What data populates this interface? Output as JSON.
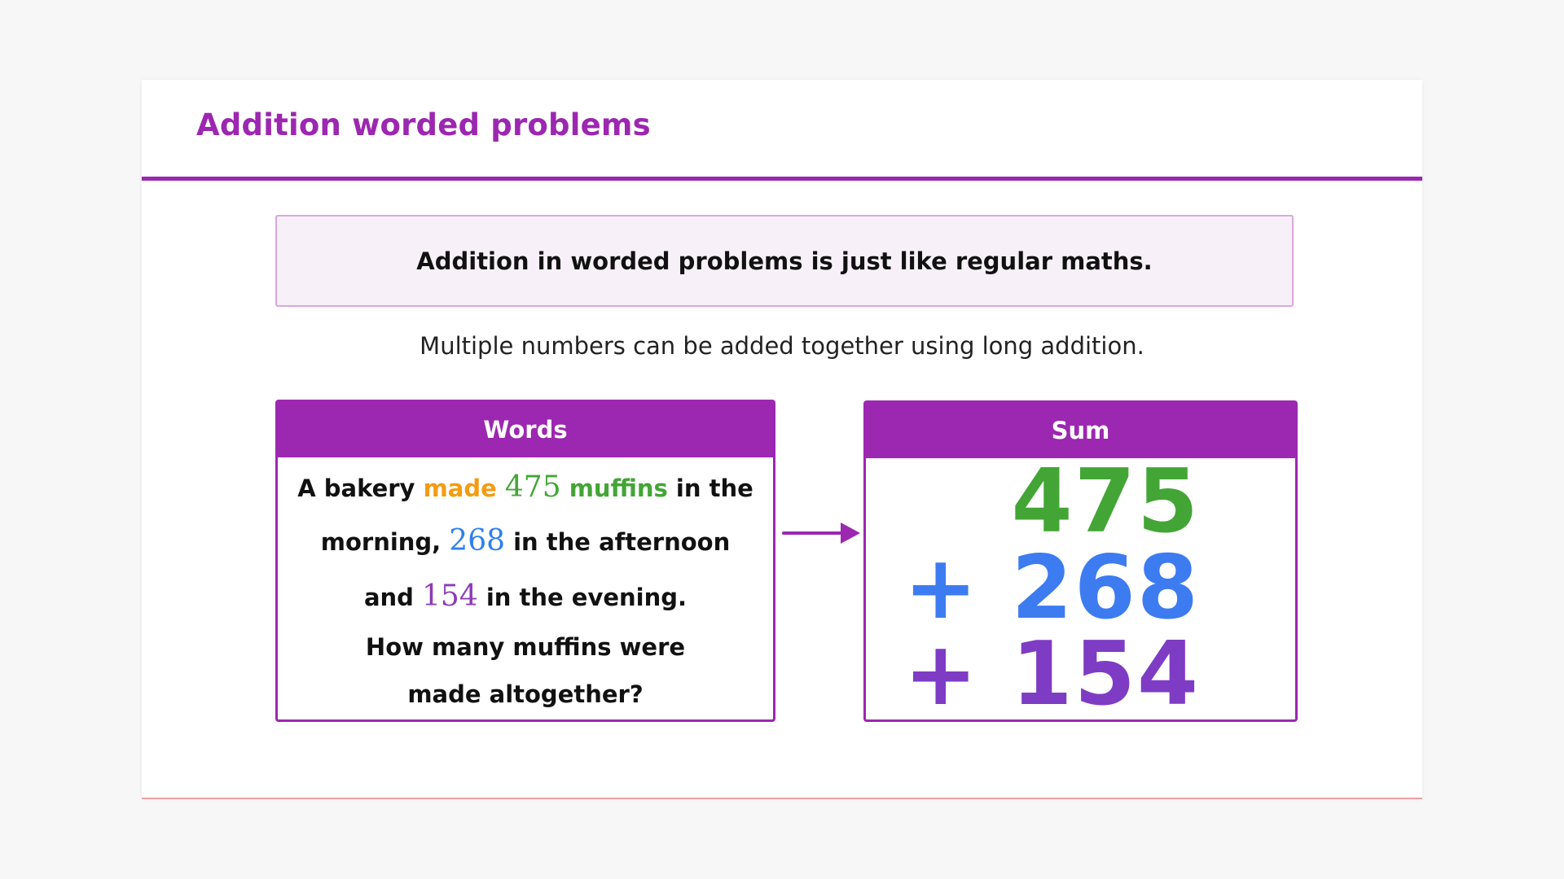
{
  "title": "Addition worded problems",
  "note": "Addition in worded problems is just like regular maths.",
  "subtitle": "Multiple numbers can be added together using long addition.",
  "words_panel": {
    "header": "Words",
    "line1": {
      "a": "A bakery ",
      "made": "made",
      "sp": " ",
      "n1": "475",
      "muffins": " muffins",
      "b": " in the"
    },
    "line2": {
      "a": "morning, ",
      "n2": "268",
      "b": " in the afternoon"
    },
    "line3": {
      "a": "and ",
      "n3": "154",
      "b": " in the evening."
    },
    "line4": "How many muffins were",
    "line5": "made altogether?"
  },
  "sum_panel": {
    "header": "Sum",
    "row1": "475",
    "row2": "+ 268",
    "row3": "+ 154"
  },
  "colors": {
    "accent": "#9c27b0",
    "orange": "#f39c12",
    "green": "#43a535",
    "blue": "#3d7bf0",
    "purple": "#7e3cc4"
  },
  "icons": {
    "arrow": "arrow-right-icon"
  }
}
